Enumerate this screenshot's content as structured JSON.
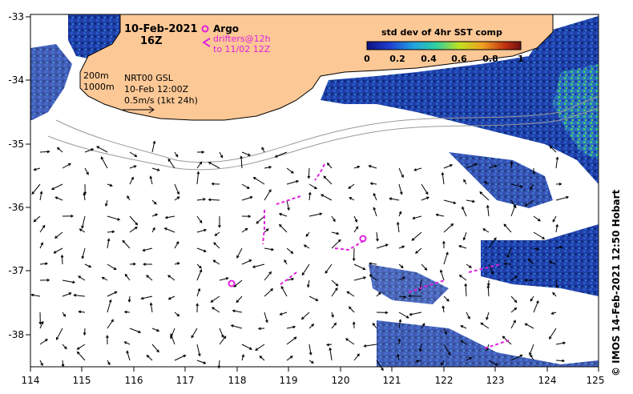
{
  "header": {
    "date": "10-Feb-2021",
    "time": "16Z"
  },
  "legend": {
    "argo_label": "Argo",
    "drifters_line1": "drifters@12h",
    "drifters_line2": "to 11/02 12Z"
  },
  "info": {
    "contour_200": "200m",
    "contour_1000": "1000m",
    "product": "NRT00 GSL",
    "product_time": "10-Feb 12:00Z",
    "scale_arrow": "0.5m/s (1kt 24h)"
  },
  "colorbar": {
    "title": "std dev of 4hr SST comp",
    "ticks": [
      "0",
      "0.2",
      "0.4",
      "0.6",
      "0.8",
      "1"
    ]
  },
  "axes": {
    "x_ticks": [
      "114",
      "115",
      "116",
      "117",
      "118",
      "119",
      "120",
      "121",
      "122",
      "123",
      "124",
      "125"
    ],
    "y_ticks": [
      "-33",
      "-34",
      "-35",
      "-36",
      "-37",
      "-38"
    ]
  },
  "credit": "© IMOS 14-Feb-2021 12:50 Hobart",
  "colors": {
    "land": "#fcc896",
    "ocean_field": "#1f3fa8",
    "field_high": "#3fc060",
    "drifter": "#e020e0",
    "contour": "#9a9a9a"
  }
}
